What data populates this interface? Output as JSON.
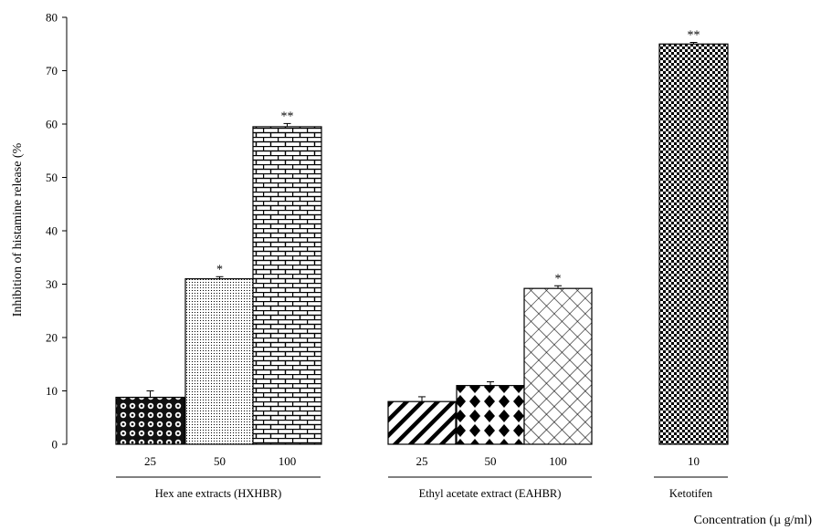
{
  "chart_data": {
    "type": "bar",
    "ylabel": "Inhibition of histamine release (%",
    "xlabel": "Concentration (µ g/ml)",
    "ylim": [
      0,
      80
    ],
    "yticks": [
      "0",
      "10",
      "20",
      "30",
      "40",
      "50",
      "60",
      "70",
      "80"
    ],
    "grid": false,
    "groups": [
      {
        "name": "Hex ane extracts (HXHBR)",
        "bars": [
          {
            "category": "25",
            "value": 8.8,
            "error": 1.2,
            "significance": "",
            "pattern": "circles"
          },
          {
            "category": "50",
            "value": 31.0,
            "error": 0.4,
            "significance": "*",
            "pattern": "dots"
          },
          {
            "category": "100",
            "value": 59.5,
            "error": 0.6,
            "significance": "**",
            "pattern": "bricks"
          }
        ]
      },
      {
        "name": "Ethyl acetate extract (EAHBR)",
        "bars": [
          {
            "category": "25",
            "value": 8.0,
            "error": 0.9,
            "significance": "",
            "pattern": "diagonal-stripes"
          },
          {
            "category": "50",
            "value": 11.0,
            "error": 0.7,
            "significance": "",
            "pattern": "diamonds"
          },
          {
            "category": "100",
            "value": 29.2,
            "error": 0.5,
            "significance": "*",
            "pattern": "crosshatch"
          }
        ]
      },
      {
        "name": "Ketotifen",
        "bars": [
          {
            "category": "10",
            "value": 75.0,
            "error": 0.3,
            "significance": "**",
            "pattern": "checker"
          }
        ]
      }
    ]
  }
}
